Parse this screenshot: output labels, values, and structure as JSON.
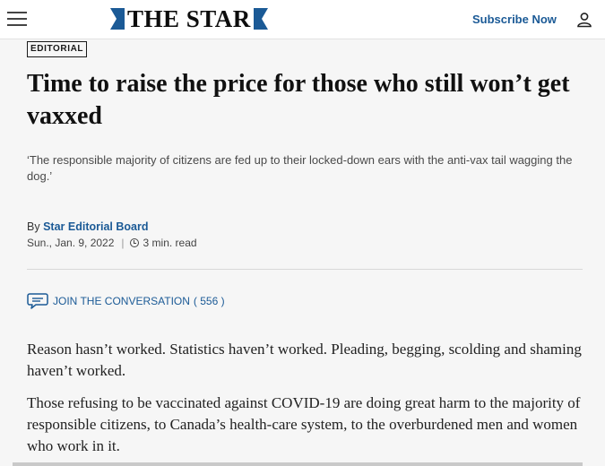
{
  "header": {
    "logo": "THE STAR",
    "subscribe_label": "Subscribe Now",
    "brand_color": "#1b5a96"
  },
  "article": {
    "section_badge": "EDITORIAL",
    "headline": "Time to raise the price for those who still won’t get vaxxed",
    "dek": "‘The responsible majority of citizens are fed up to their locked-down ears with the anti-vax tail wagging the dog.’",
    "byline_prefix": "By",
    "author": "Star Editorial Board",
    "date": "Sun., Jan. 9, 2022",
    "read_time": "3 min. read",
    "comments_label": "JOIN THE CONVERSATION",
    "comments_count": "( 556 )",
    "paragraphs": [
      "Reason hasn’t worked. Statistics haven’t worked. Pleading, begging, scolding and shaming haven’t worked.",
      "Those refusing to be vaccinated against COVID-19 are doing great harm to the majority of responsible citizens, to Canada’s health-care system, to the overburdened men and women who work in it."
    ]
  },
  "icons": [
    "menu-icon",
    "star-logo-flag-icon",
    "user-icon",
    "clock-icon",
    "comment-bubble-icon"
  ]
}
